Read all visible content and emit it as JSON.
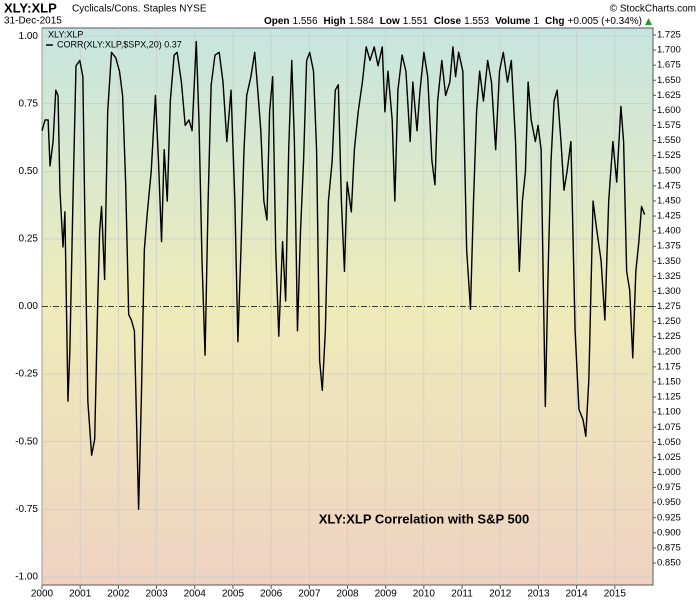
{
  "header": {
    "title": "XLY:XLP",
    "subtitle": "Cyclicals/Cons. Staples NYSE",
    "date": "31-Dec-2015",
    "credit": "© StockCharts.com",
    "quote": [
      {
        "label": "Open",
        "value": "1.556"
      },
      {
        "label": "High",
        "value": "1.584"
      },
      {
        "label": "Low",
        "value": "1.551"
      },
      {
        "label": "Close",
        "value": "1.553"
      },
      {
        "label": "Volume",
        "value": "1"
      },
      {
        "label": "Chg",
        "value": "+0.005 (+0.34%)"
      }
    ]
  },
  "chart_data": {
    "type": "line",
    "legend_title": "XLY:XLP",
    "annotation": "XLY:XLP Correlation with S&P 500",
    "grid": true,
    "xlim": [
      2000,
      2016
    ],
    "xticks": [
      2000,
      2001,
      2002,
      2003,
      2004,
      2005,
      2006,
      2007,
      2008,
      2009,
      2010,
      2011,
      2012,
      2013,
      2014,
      2015
    ],
    "ylim": [
      -1.03,
      1.03
    ],
    "yticks": [
      {
        "value": -1,
        "label": "-1.00"
      },
      {
        "value": -0.75,
        "label": "-0.75"
      },
      {
        "value": -0.5,
        "label": "-0.50"
      },
      {
        "value": -0.25,
        "label": "-0.25"
      },
      {
        "value": 0,
        "label": "0.00"
      },
      {
        "value": 0.25,
        "label": "0.25"
      },
      {
        "value": 0.5,
        "label": "0.50"
      },
      {
        "value": 0.75,
        "label": "0.75"
      },
      {
        "value": 1,
        "label": "1.00"
      }
    ],
    "y2lim": [
      0.8136,
      1.7366
    ],
    "y2ticks": [
      {
        "value": 0.85,
        "label": "0.850"
      },
      {
        "value": 0.875,
        "label": "0.875"
      },
      {
        "value": 0.9,
        "label": "0.900"
      },
      {
        "value": 0.925,
        "label": "0.925"
      },
      {
        "value": 0.95,
        "label": "0.950"
      },
      {
        "value": 0.975,
        "label": "0.975"
      },
      {
        "value": 1,
        "label": "1.000"
      },
      {
        "value": 1.025,
        "label": "1.025"
      },
      {
        "value": 1.05,
        "label": "1.050"
      },
      {
        "value": 1.075,
        "label": "1.075"
      },
      {
        "value": 1.1,
        "label": "1.100"
      },
      {
        "value": 1.125,
        "label": "1.125"
      },
      {
        "value": 1.15,
        "label": "1.150"
      },
      {
        "value": 1.175,
        "label": "1.175"
      },
      {
        "value": 1.2,
        "label": "1.200"
      },
      {
        "value": 1.225,
        "label": "1.225"
      },
      {
        "value": 1.25,
        "label": "1.250"
      },
      {
        "value": 1.275,
        "label": "1.275"
      },
      {
        "value": 1.3,
        "label": "1.300"
      },
      {
        "value": 1.325,
        "label": "1.325"
      },
      {
        "value": 1.35,
        "label": "1.350"
      },
      {
        "value": 1.375,
        "label": "1.375"
      },
      {
        "value": 1.4,
        "label": "1.400"
      },
      {
        "value": 1.425,
        "label": "1.425"
      },
      {
        "value": 1.45,
        "label": "1.450"
      },
      {
        "value": 1.475,
        "label": "1.475"
      },
      {
        "value": 1.5,
        "label": "1.500"
      },
      {
        "value": 1.525,
        "label": "1.525"
      },
      {
        "value": 1.55,
        "label": "1.550"
      },
      {
        "value": 1.575,
        "label": "1.575"
      },
      {
        "value": 1.6,
        "label": "1.600"
      },
      {
        "value": 1.625,
        "label": "1.625"
      },
      {
        "value": 1.65,
        "label": "1.650"
      },
      {
        "value": 1.675,
        "label": "1.675"
      },
      {
        "value": 1.7,
        "label": "1.700"
      },
      {
        "value": 1.725,
        "label": "1.725"
      }
    ],
    "x": [
      2000.0,
      2000.08,
      2000.16,
      2000.21,
      2000.29,
      2000.36,
      2000.42,
      2000.47,
      2000.55,
      2000.6,
      2000.68,
      2000.73,
      2000.81,
      2000.89,
      2000.99,
      2001.07,
      2001.12,
      2001.2,
      2001.3,
      2001.38,
      2001.46,
      2001.51,
      2001.56,
      2001.64,
      2001.72,
      2001.82,
      2001.93,
      2002.03,
      2002.11,
      2002.19,
      2002.27,
      2002.34,
      2002.42,
      2002.53,
      2002.6,
      2002.68,
      2002.76,
      2002.86,
      2002.97,
      2003.05,
      2003.13,
      2003.2,
      2003.28,
      2003.36,
      2003.46,
      2003.54,
      2003.65,
      2003.75,
      2003.85,
      2003.93,
      2004.04,
      2004.11,
      2004.19,
      2004.27,
      2004.35,
      2004.43,
      2004.53,
      2004.64,
      2004.74,
      2004.84,
      2004.95,
      2005.05,
      2005.13,
      2005.21,
      2005.29,
      2005.36,
      2005.47,
      2005.57,
      2005.65,
      2005.73,
      2005.81,
      2005.89,
      2005.96,
      2006.04,
      2006.12,
      2006.2,
      2006.3,
      2006.38,
      2006.46,
      2006.54,
      2006.61,
      2006.69,
      2006.77,
      2006.85,
      2006.93,
      2007.01,
      2007.11,
      2007.19,
      2007.27,
      2007.34,
      2007.42,
      2007.5,
      2007.6,
      2007.68,
      2007.76,
      2007.84,
      2007.92,
      2007.99,
      2008.1,
      2008.18,
      2008.28,
      2008.39,
      2008.49,
      2008.59,
      2008.7,
      2008.8,
      2008.91,
      2008.98,
      2009.06,
      2009.17,
      2009.24,
      2009.32,
      2009.43,
      2009.53,
      2009.64,
      2009.71,
      2009.82,
      2009.9,
      2010.0,
      2010.1,
      2010.21,
      2010.29,
      2010.36,
      2010.47,
      2010.57,
      2010.68,
      2010.76,
      2010.83,
      2010.91,
      2011.02,
      2011.12,
      2011.22,
      2011.3,
      2011.38,
      2011.46,
      2011.56,
      2011.67,
      2011.77,
      2011.88,
      2011.98,
      2012.08,
      2012.19,
      2012.29,
      2012.4,
      2012.5,
      2012.58,
      2012.66,
      2012.73,
      2012.81,
      2012.92,
      2012.99,
      2013.07,
      2013.18,
      2013.26,
      2013.33,
      2013.41,
      2013.49,
      2013.59,
      2013.67,
      2013.75,
      2013.85,
      2013.96,
      2014.06,
      2014.17,
      2014.24,
      2014.32,
      2014.43,
      2014.53,
      2014.64,
      2014.74,
      2014.84,
      2014.95,
      2015.05,
      2015.16,
      2015.23,
      2015.31,
      2015.39,
      2015.47,
      2015.55,
      2015.63,
      2015.7,
      2015.78
    ],
    "series": [
      {
        "name": "CORR(XLY:XLP,$SPX,20) 0.37",
        "color": "#000000",
        "values": [
          0.65,
          0.69,
          0.69,
          0.52,
          0.61,
          0.8,
          0.78,
          0.43,
          0.22,
          0.35,
          -0.35,
          -0.16,
          0.39,
          0.89,
          0.91,
          0.85,
          0.35,
          -0.35,
          -0.55,
          -0.49,
          0.02,
          0.28,
          0.37,
          0.1,
          0.72,
          0.94,
          0.92,
          0.87,
          0.78,
          0.46,
          -0.03,
          -0.05,
          -0.09,
          -0.75,
          -0.35,
          0.21,
          0.35,
          0.5,
          0.78,
          0.54,
          0.24,
          0.58,
          0.39,
          0.76,
          0.93,
          0.94,
          0.83,
          0.67,
          0.69,
          0.65,
          0.98,
          0.69,
          0.17,
          -0.18,
          0.39,
          0.82,
          0.93,
          0.94,
          0.83,
          0.61,
          0.8,
          0.39,
          -0.13,
          0.21,
          0.58,
          0.78,
          0.85,
          0.94,
          0.8,
          0.65,
          0.39,
          0.32,
          0.72,
          0.85,
          0.21,
          -0.11,
          0.24,
          0.02,
          0.58,
          0.91,
          0.61,
          -0.09,
          0.28,
          0.54,
          0.91,
          0.94,
          0.87,
          0.58,
          -0.2,
          -0.31,
          -0.09,
          0.39,
          0.54,
          0.8,
          0.82,
          0.39,
          0.13,
          0.46,
          0.35,
          0.58,
          0.72,
          0.83,
          0.96,
          0.91,
          0.96,
          0.89,
          0.96,
          0.72,
          0.87,
          0.69,
          0.39,
          0.8,
          0.93,
          0.87,
          0.61,
          0.83,
          0.65,
          0.8,
          0.94,
          0.85,
          0.54,
          0.45,
          0.76,
          0.91,
          0.78,
          0.83,
          0.96,
          0.85,
          0.94,
          0.87,
          0.21,
          -0.01,
          0.39,
          0.72,
          0.87,
          0.76,
          0.91,
          0.83,
          0.58,
          0.87,
          0.94,
          0.83,
          0.91,
          0.61,
          0.13,
          0.39,
          0.5,
          0.83,
          0.69,
          0.61,
          0.67,
          0.58,
          -0.37,
          0.17,
          0.54,
          0.76,
          0.8,
          0.61,
          0.43,
          0.5,
          0.61,
          -0.09,
          -0.38,
          -0.42,
          -0.48,
          -0.27,
          0.39,
          0.28,
          0.17,
          -0.05,
          0.39,
          0.61,
          0.46,
          0.74,
          0.61,
          0.13,
          0.06,
          -0.19,
          0.13,
          0.24,
          0.37,
          0.34
        ]
      }
    ]
  }
}
